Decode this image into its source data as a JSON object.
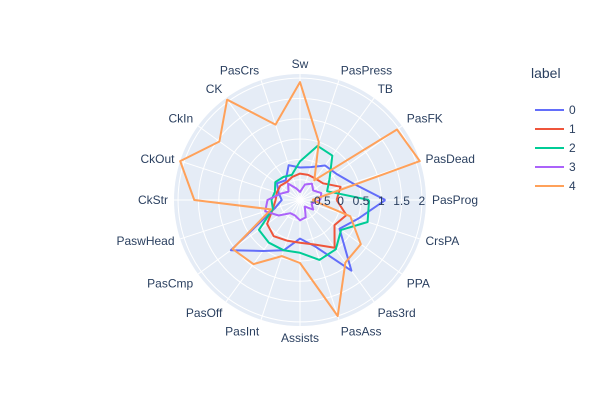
{
  "chart_data": {
    "type": "radar",
    "angular_axis_direction": "counterclockwise",
    "angular_axis_start": "right",
    "categories": [
      "PasProg",
      "PasDead",
      "PasFK",
      "TB",
      "PasPress",
      "Sw",
      "PasCrs",
      "CK",
      "CkIn",
      "CkOut",
      "CkStr",
      "PaswHead",
      "PasCmp",
      "PasOff",
      "PasInt",
      "Assists",
      "PasAss",
      "Pas3rd",
      "PPA",
      "CrsPA"
    ],
    "radial_ticks": [
      "-0.5",
      "0",
      "0.5",
      "1",
      "1.5",
      "2"
    ],
    "radial_range": [
      -1,
      2.1
    ],
    "legend": {
      "title": "label",
      "position": "right"
    },
    "background_color": "#e5ecf6",
    "series": [
      {
        "name": "0",
        "color": "#636efa",
        "values": [
          1.1,
          0.35,
          0.1,
          0.05,
          -0.15,
          -0.2,
          -0.1,
          -0.4,
          -0.3,
          -0.45,
          -0.55,
          -0.35,
          1.1,
          0.55,
          0.3,
          -0.05,
          0.2,
          1.15,
          0.2,
          0.5
        ]
      },
      {
        "name": "1",
        "color": "#ef553b",
        "values": [
          -0.1,
          0.05,
          -0.3,
          -0.35,
          -0.35,
          -0.35,
          -0.4,
          -0.45,
          -0.4,
          -0.4,
          -0.4,
          -0.3,
          0.0,
          0.1,
          0.05,
          0.05,
          0.15,
          0.45,
          0.05,
          0.2
        ]
      },
      {
        "name": "2",
        "color": "#00cc96",
        "values": [
          0.7,
          -0.3,
          -0.1,
          0.35,
          0.4,
          -0.05,
          -0.35,
          -0.3,
          -0.25,
          -0.35,
          -0.3,
          -0.3,
          0.25,
          0.3,
          0.3,
          0.3,
          0.55,
          0.5,
          0.25,
          0.75
        ]
      },
      {
        "name": "3",
        "color": "#ab63fa",
        "values": [
          -0.5,
          -0.45,
          -0.6,
          -0.5,
          -0.6,
          -0.8,
          -0.7,
          -0.5,
          -0.65,
          -0.5,
          -0.2,
          -0.1,
          -0.35,
          -0.6,
          -0.6,
          -0.5,
          -0.55,
          -0.8,
          -0.6,
          -0.7
        ]
      },
      {
        "name": "4",
        "color": "#ffa15a",
        "values": [
          -0.7,
          2.1,
          1.95,
          -0.4,
          0.5,
          1.9,
          0.95,
          2.05,
          1.45,
          2.1,
          1.6,
          -0.25,
          1.05,
          0.95,
          0.45,
          0.55,
          2.0,
          0.9,
          0.85,
          0.3
        ]
      }
    ]
  }
}
